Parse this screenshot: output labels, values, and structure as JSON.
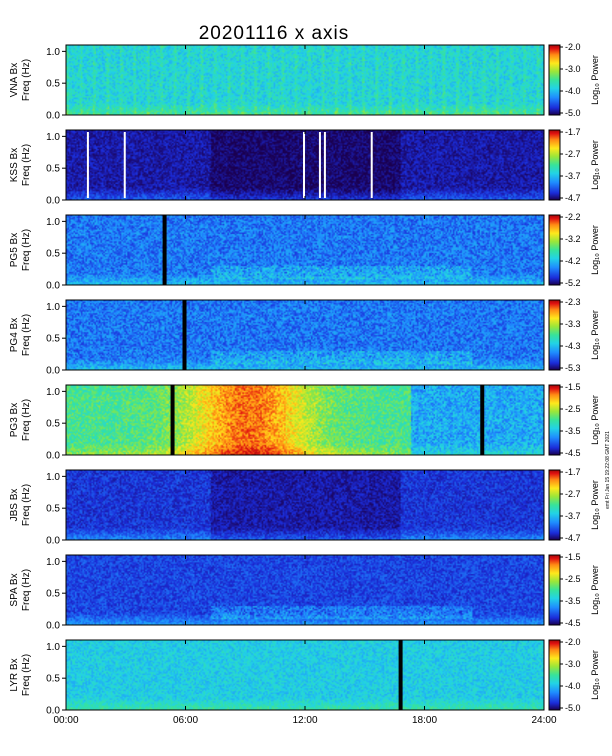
{
  "chart_data": {
    "type": "heatmap",
    "title": "20201116  x axis",
    "x_tick_labels": [
      "00:00",
      "06:00",
      "12:00",
      "18:00",
      "24:00"
    ],
    "x_ticks_hours": [
      0,
      6,
      12,
      18,
      24
    ],
    "xlim_hours": [
      0,
      24
    ],
    "y_tick_labels": [
      "0.0",
      "0.5",
      "1.0"
    ],
    "ylim_hz": [
      0,
      1.1
    ],
    "colorbar_label": "Log₁₀ Power",
    "footnote": "emt Fri Jan 15 19:22:08 GMT 2021",
    "colormap": [
      "#1a0050",
      "#1b2bd8",
      "#1f8cff",
      "#22d3e6",
      "#37e39a",
      "#9ae63a",
      "#ffe81c",
      "#ff8a14",
      "#e01010",
      "#a00808"
    ],
    "panels": [
      {
        "station": "VNA Bx",
        "ylabel": "Freq (Hz)",
        "cbar_ticks": [
          "-2.0",
          "-3.0",
          "-4.0",
          "-5.0"
        ],
        "clim": [
          -5.0,
          -2.0
        ],
        "base": 0.35,
        "noise": 0.07,
        "dark_gaps_hours": [],
        "white_gaps_hours": []
      },
      {
        "station": "KSS Bx",
        "ylabel": "Freq (Hz)",
        "cbar_ticks": [
          "-1.7",
          "-2.7",
          "-3.7",
          "-4.7"
        ],
        "clim": [
          -4.7,
          -1.7
        ],
        "base": 0.07,
        "noise": 0.05,
        "dark_gaps_hours": [],
        "white_gaps_hours": [
          1.1,
          2.95,
          11.95,
          12.75,
          13.0,
          15.35
        ]
      },
      {
        "station": "PG5 Bx",
        "ylabel": "Freq (Hz)",
        "cbar_ticks": [
          "-2.2",
          "-3.2",
          "-4.2",
          "-5.2"
        ],
        "clim": [
          -5.2,
          -2.2
        ],
        "base": 0.2,
        "noise": 0.07,
        "dark_gaps_hours": [
          4.95
        ],
        "white_gaps_hours": []
      },
      {
        "station": "PG4 Bx",
        "ylabel": "Freq (Hz)",
        "cbar_ticks": [
          "-2.3",
          "-3.3",
          "-4.3",
          "-5.3"
        ],
        "clim": [
          -5.3,
          -2.3
        ],
        "base": 0.2,
        "noise": 0.07,
        "dark_gaps_hours": [
          5.95
        ],
        "white_gaps_hours": []
      },
      {
        "station": "PG3 Bx",
        "ylabel": "Freq (Hz)",
        "cbar_ticks": [
          "-1.5",
          "-2.5",
          "-3.5",
          "-4.5"
        ],
        "clim": [
          -4.5,
          -1.5
        ],
        "base": 0.45,
        "noise": 0.08,
        "dark_gaps_hours": [
          5.35,
          20.9
        ],
        "white_gaps_hours": []
      },
      {
        "station": "JBS Bx",
        "ylabel": "Freq (Hz)",
        "cbar_ticks": [
          "-1.7",
          "-2.7",
          "-3.7",
          "-4.7"
        ],
        "clim": [
          -4.7,
          -1.7
        ],
        "base": 0.12,
        "noise": 0.05,
        "dark_gaps_hours": [],
        "white_gaps_hours": []
      },
      {
        "station": "SPA Bx",
        "ylabel": "Freq (Hz)",
        "cbar_ticks": [
          "-1.5",
          "-2.5",
          "-3.5",
          "-4.5"
        ],
        "clim": [
          -4.5,
          -1.5
        ],
        "base": 0.14,
        "noise": 0.05,
        "dark_gaps_hours": [],
        "white_gaps_hours": []
      },
      {
        "station": "LYR Bx",
        "ylabel": "Freq (Hz)",
        "cbar_ticks": [
          "-2.0",
          "-3.0",
          "-4.0",
          "-5.0"
        ],
        "clim": [
          -5.0,
          -2.0
        ],
        "base": 0.33,
        "noise": 0.06,
        "dark_gaps_hours": [
          16.8
        ],
        "white_gaps_hours": []
      }
    ]
  }
}
